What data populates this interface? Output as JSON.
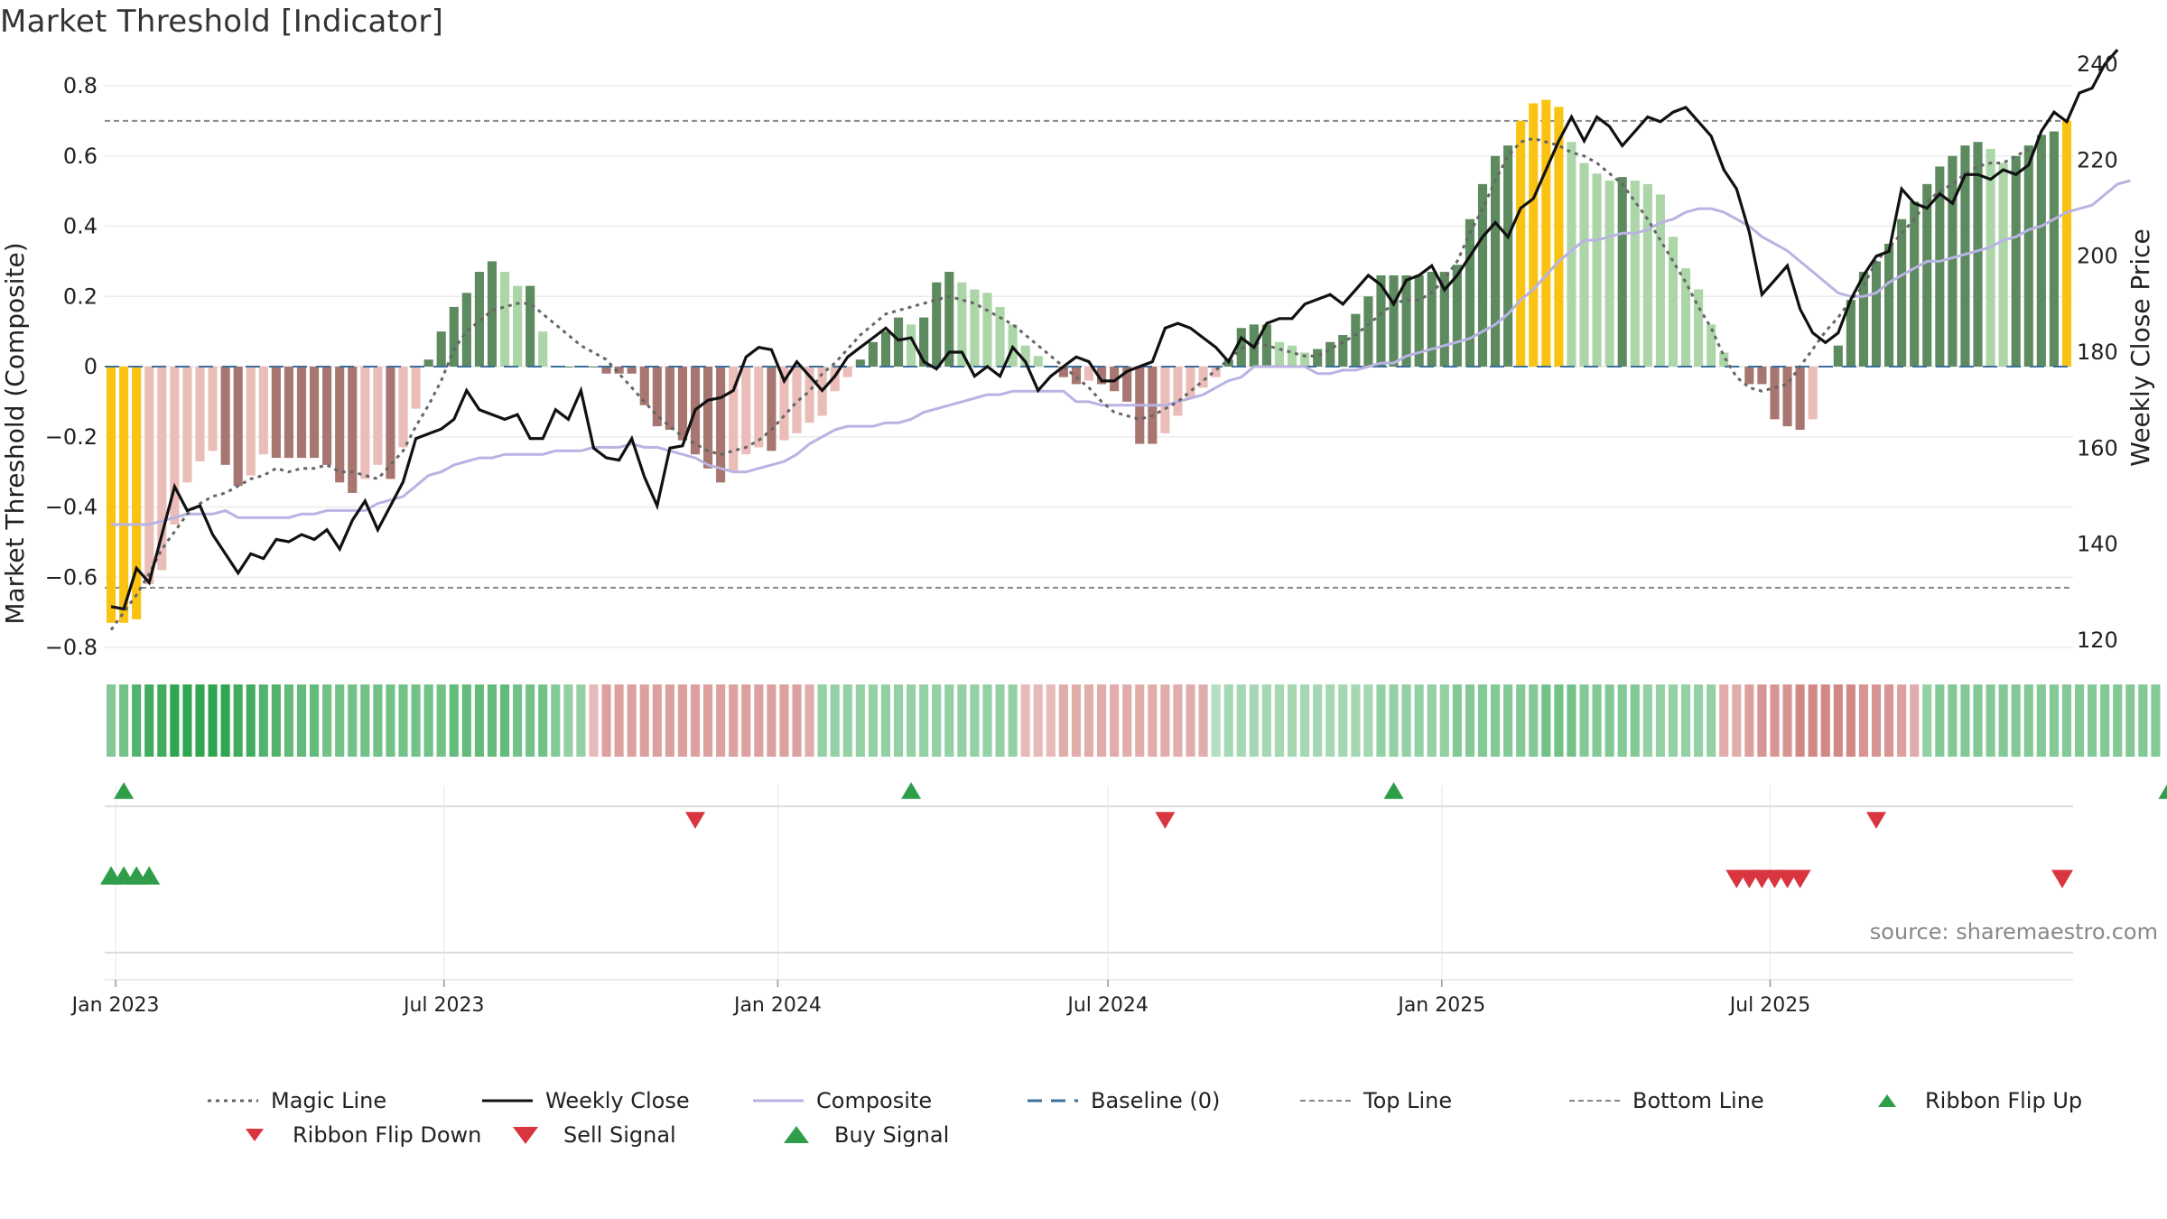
{
  "title": "Market Threshold [Indicator]",
  "source": "source: sharemaestro.com",
  "colors": {
    "pos_dark": "#5d8a5f",
    "pos_light": "#acd6a8",
    "neg_dark": "#a77670",
    "neg_light": "#ebbdb8",
    "extreme": "#fbc311",
    "weekly_close": "#111111",
    "composite": "#b9b3e3",
    "magic_line": "#666666",
    "baseline": "#3b6f9c",
    "threshold_line": "#888888",
    "signal_up": "#2e9e4a",
    "signal_down": "#d9353f"
  },
  "chart_data": {
    "type": "bar",
    "x_start": "2022-12-26",
    "x_ticks": [
      "Jan 2023",
      "Jul 2023",
      "Jan 2024",
      "Jul 2024",
      "Jan 2025",
      "Jul 2025"
    ],
    "ylabel": "Market Threshold (Composite)",
    "y2label": "Weekly Close Price",
    "ylim": [
      -0.8,
      0.8
    ],
    "y_ticks": [
      "0.8",
      "0.6",
      "0.4",
      "0.2",
      "0",
      "−0.2",
      "−0.4",
      "−0.6",
      "−0.8"
    ],
    "y2lim": [
      120,
      240
    ],
    "y2_ticks": [
      "240",
      "220",
      "200",
      "180",
      "160",
      "140",
      "120"
    ],
    "top_line": 0.7,
    "bottom_line": -0.63,
    "baseline": 0,
    "bars": [
      -0.73,
      -0.73,
      -0.72,
      -0.62,
      -0.58,
      -0.45,
      -0.33,
      -0.27,
      -0.24,
      -0.28,
      -0.34,
      -0.31,
      -0.25,
      -0.26,
      -0.26,
      -0.26,
      -0.26,
      -0.28,
      -0.33,
      -0.36,
      -0.32,
      -0.28,
      -0.32,
      -0.23,
      -0.12,
      0.02,
      0.1,
      0.17,
      0.21,
      0.27,
      0.3,
      0.27,
      0.23,
      0.23,
      0.1,
      0,
      0,
      0,
      0,
      -0.02,
      -0.02,
      -0.02,
      -0.11,
      -0.17,
      -0.18,
      -0.21,
      -0.25,
      -0.29,
      -0.33,
      -0.3,
      -0.25,
      -0.23,
      -0.24,
      -0.21,
      -0.19,
      -0.16,
      -0.14,
      -0.07,
      -0.03,
      0.02,
      0.07,
      0.1,
      0.14,
      0.12,
      0.14,
      0.24,
      0.27,
      0.24,
      0.22,
      0.21,
      0.17,
      0.12,
      0.06,
      0.03,
      0,
      -0.03,
      -0.05,
      -0.04,
      -0.05,
      -0.07,
      -0.1,
      -0.22,
      -0.22,
      -0.19,
      -0.14,
      -0.09,
      -0.06,
      -0.03,
      0.02,
      0.11,
      0.12,
      0.12,
      0.07,
      0.06,
      0.04,
      0.05,
      0.07,
      0.09,
      0.15,
      0.2,
      0.26,
      0.26,
      0.26,
      0.26,
      0.27,
      0.27,
      0.29,
      0.42,
      0.52,
      0.6,
      0.63,
      0.7,
      0.75,
      0.76,
      0.74,
      0.64,
      0.58,
      0.55,
      0.53,
      0.54,
      0.53,
      0.52,
      0.49,
      0.37,
      0.28,
      0.22,
      0.12,
      0.04,
      0,
      -0.05,
      -0.05,
      -0.15,
      -0.17,
      -0.18,
      -0.15,
      0,
      0.06,
      0.19,
      0.27,
      0.3,
      0.35,
      0.42,
      0.47,
      0.52,
      0.57,
      0.6,
      0.63,
      0.64,
      0.62,
      0.58,
      0.6,
      0.63,
      0.66,
      0.67,
      0.7
    ],
    "weekly_close": [
      127,
      126.5,
      135,
      132,
      142,
      152,
      147,
      148,
      142,
      138,
      134,
      138,
      137,
      141,
      140.5,
      142,
      141,
      143,
      139,
      145,
      149,
      143,
      148,
      153,
      162,
      163,
      164,
      166,
      172,
      168,
      167,
      166,
      167,
      162,
      162,
      168,
      166,
      172,
      160,
      158,
      157.5,
      162,
      154,
      148,
      160,
      160.5,
      168,
      170,
      170.5,
      172,
      179,
      181,
      180.5,
      174,
      178,
      175,
      172,
      175,
      179,
      181,
      183,
      185,
      182.5,
      183,
      178,
      176.5,
      180,
      180,
      175,
      177,
      175,
      181,
      178,
      172,
      175,
      177,
      179,
      178,
      174,
      174,
      176,
      177,
      178,
      185,
      186,
      185,
      183,
      181,
      178,
      183,
      181,
      186,
      187,
      187,
      190,
      191,
      192,
      190,
      193,
      196,
      194,
      190,
      195,
      196,
      198,
      193,
      196,
      200,
      204,
      207,
      204,
      210,
      212,
      218,
      224,
      229,
      224,
      229,
      227,
      223,
      226,
      229,
      228,
      230,
      231,
      228,
      225,
      218,
      214,
      205,
      192,
      195,
      198,
      189,
      184,
      182,
      184,
      191,
      196,
      200,
      201,
      214,
      211,
      210,
      213,
      211,
      217,
      217,
      216,
      218,
      217,
      219,
      226,
      230,
      228,
      234,
      235,
      240,
      243
    ],
    "composite": [
      -0.45,
      -0.45,
      -0.45,
      -0.45,
      -0.44,
      -0.43,
      -0.42,
      -0.42,
      -0.42,
      -0.41,
      -0.43,
      -0.43,
      -0.43,
      -0.43,
      -0.43,
      -0.42,
      -0.42,
      -0.41,
      -0.41,
      -0.41,
      -0.41,
      -0.39,
      -0.38,
      -0.37,
      -0.34,
      -0.31,
      -0.3,
      -0.28,
      -0.27,
      -0.26,
      -0.26,
      -0.25,
      -0.25,
      -0.25,
      -0.25,
      -0.24,
      -0.24,
      -0.24,
      -0.23,
      -0.23,
      -0.23,
      -0.22,
      -0.23,
      -0.23,
      -0.24,
      -0.25,
      -0.26,
      -0.28,
      -0.29,
      -0.3,
      -0.3,
      -0.29,
      -0.28,
      -0.27,
      -0.25,
      -0.22,
      -0.2,
      -0.18,
      -0.17,
      -0.17,
      -0.17,
      -0.16,
      -0.16,
      -0.15,
      -0.13,
      -0.12,
      -0.11,
      -0.1,
      -0.09,
      -0.08,
      -0.08,
      -0.07,
      -0.07,
      -0.07,
      -0.07,
      -0.07,
      -0.1,
      -0.1,
      -0.11,
      -0.11,
      -0.11,
      -0.11,
      -0.11,
      -0.11,
      -0.1,
      -0.09,
      -0.08,
      -0.06,
      -0.04,
      -0.03,
      0,
      0,
      0,
      0,
      0,
      -0.02,
      -0.02,
      -0.01,
      -0.01,
      0,
      0.01,
      0.01,
      0.03,
      0.04,
      0.05,
      0.06,
      0.07,
      0.08,
      0.1,
      0.12,
      0.15,
      0.19,
      0.22,
      0.26,
      0.3,
      0.33,
      0.36,
      0.36,
      0.37,
      0.38,
      0.38,
      0.39,
      0.41,
      0.42,
      0.44,
      0.45,
      0.45,
      0.44,
      0.42,
      0.4,
      0.37,
      0.35,
      0.33,
      0.3,
      0.27,
      0.24,
      0.21,
      0.2,
      0.2,
      0.21,
      0.24,
      0.26,
      0.28,
      0.3,
      0.3,
      0.31,
      0.32,
      0.33,
      0.34,
      0.36,
      0.37,
      0.39,
      0.4,
      0.42,
      0.44,
      0.45,
      0.46,
      0.49,
      0.52,
      0.53
    ],
    "magic_line": [
      -0.75,
      -0.7,
      -0.65,
      -0.59,
      -0.52,
      -0.47,
      -0.42,
      -0.39,
      -0.37,
      -0.36,
      -0.34,
      -0.32,
      -0.31,
      -0.29,
      -0.3,
      -0.29,
      -0.29,
      -0.28,
      -0.3,
      -0.3,
      -0.31,
      -0.32,
      -0.28,
      -0.24,
      -0.17,
      -0.11,
      -0.04,
      0.05,
      0.1,
      0.13,
      0.16,
      0.17,
      0.18,
      0.18,
      0.15,
      0.12,
      0.09,
      0.06,
      0.04,
      0.02,
      -0.02,
      -0.06,
      -0.1,
      -0.14,
      -0.17,
      -0.2,
      -0.22,
      -0.24,
      -0.25,
      -0.24,
      -0.23,
      -0.21,
      -0.18,
      -0.14,
      -0.1,
      -0.07,
      -0.02,
      0.01,
      0.05,
      0.09,
      0.12,
      0.15,
      0.16,
      0.17,
      0.18,
      0.19,
      0.2,
      0.19,
      0.18,
      0.16,
      0.14,
      0.12,
      0.09,
      0.06,
      0.03,
      0,
      -0.03,
      -0.06,
      -0.1,
      -0.13,
      -0.14,
      -0.15,
      -0.14,
      -0.12,
      -0.1,
      -0.07,
      -0.04,
      -0.01,
      0.02,
      0.05,
      0.07,
      0.06,
      0.05,
      0.04,
      0.03,
      0.03,
      0.05,
      0.07,
      0.09,
      0.12,
      0.15,
      0.18,
      0.19,
      0.19,
      0.21,
      0.25,
      0.3,
      0.38,
      0.45,
      0.53,
      0.6,
      0.64,
      0.65,
      0.64,
      0.63,
      0.61,
      0.6,
      0.58,
      0.55,
      0.52,
      0.47,
      0.42,
      0.36,
      0.3,
      0.24,
      0.17,
      0.11,
      0.03,
      -0.03,
      -0.06,
      -0.07,
      -0.06,
      -0.05,
      0,
      0.05,
      0.1,
      0.14,
      0.19,
      0.23,
      0.3,
      0.34,
      0.38,
      0.42,
      0.47,
      0.5,
      0.52,
      0.55,
      0.57,
      0.58,
      0.58,
      0.6,
      0.62
    ],
    "ribbon": [
      0.5,
      0.6,
      0.8,
      0.9,
      0.9,
      1,
      1,
      1,
      1,
      1,
      0.9,
      0.9,
      0.8,
      0.8,
      0.7,
      0.7,
      0.7,
      0.6,
      0.6,
      0.6,
      0.6,
      0.6,
      0.6,
      0.6,
      0.6,
      0.6,
      0.6,
      0.7,
      0.7,
      0.7,
      0.7,
      0.7,
      0.6,
      0.6,
      0.6,
      0.5,
      0.4,
      0.4,
      -0.3,
      -0.5,
      -0.5,
      -0.5,
      -0.5,
      -0.5,
      -0.5,
      -0.5,
      -0.5,
      -0.5,
      -0.5,
      -0.5,
      -0.5,
      -0.5,
      -0.5,
      -0.5,
      -0.5,
      -0.4,
      0.4,
      0.4,
      0.4,
      0.4,
      0.4,
      0.4,
      0.4,
      0.4,
      0.4,
      0.4,
      0.4,
      0.4,
      0.4,
      0.4,
      0.4,
      0.4,
      -0.3,
      -0.3,
      -0.3,
      -0.4,
      -0.4,
      -0.4,
      -0.4,
      -0.4,
      -0.4,
      -0.4,
      -0.4,
      -0.4,
      -0.4,
      -0.4,
      -0.4,
      0.2,
      0.3,
      0.3,
      0.3,
      0.3,
      0.3,
      0.3,
      0.3,
      0.3,
      0.3,
      0.3,
      0.3,
      0.3,
      0.4,
      0.4,
      0.4,
      0.4,
      0.4,
      0.4,
      0.5,
      0.5,
      0.5,
      0.5,
      0.5,
      0.5,
      0.5,
      0.6,
      0.6,
      0.6,
      0.5,
      0.5,
      0.5,
      0.5,
      0.5,
      0.4,
      0.4,
      0.4,
      0.4,
      0.4,
      0.4,
      -0.4,
      -0.4,
      -0.5,
      -0.6,
      -0.6,
      -0.6,
      -0.7,
      -0.7,
      -0.7,
      -0.7,
      -0.7,
      -0.6,
      -0.6,
      -0.6,
      -0.5,
      -0.4,
      0.4,
      0.5,
      0.5,
      0.5,
      0.5,
      0.5,
      0.5,
      0.5,
      0.5,
      0.5,
      0.5,
      0.5,
      0.5,
      0.5,
      0.5,
      0.5,
      0.5,
      0.5,
      0.5
    ],
    "signals": {
      "ribbon_flip_up": [
        1,
        63,
        101,
        162
      ],
      "ribbon_flip_down": [
        46,
        83,
        139
      ],
      "buy_signal": [
        0,
        1,
        2,
        3
      ],
      "sell_signal": [
        128,
        129,
        130,
        131,
        132,
        133,
        190
      ]
    },
    "legend": [
      {
        "label": "Magic Line",
        "symbol": "dotted-line"
      },
      {
        "label": "Weekly Close",
        "symbol": "solid-black-line"
      },
      {
        "label": "Composite",
        "symbol": "solid-lavender-line"
      },
      {
        "label": "Baseline (0)",
        "symbol": "dashed-blue-line"
      },
      {
        "label": "Top Line",
        "symbol": "dashed-gray-line"
      },
      {
        "label": "Bottom Line",
        "symbol": "dashed-gray-line"
      },
      {
        "label": "Ribbon Flip Up",
        "symbol": "small-green-up-triangle"
      },
      {
        "label": "Ribbon Flip Down",
        "symbol": "small-red-down-triangle"
      },
      {
        "label": "Sell Signal",
        "symbol": "red-down-triangle"
      },
      {
        "label": "Buy Signal",
        "symbol": "green-up-triangle"
      }
    ]
  }
}
